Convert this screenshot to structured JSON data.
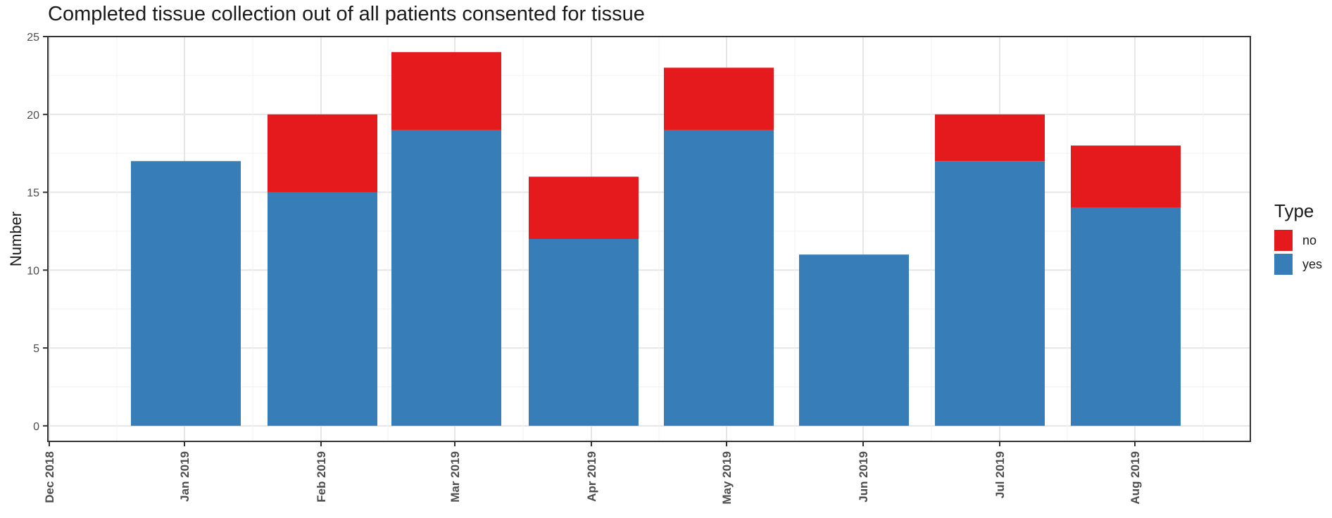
{
  "chart_data": {
    "type": "bar",
    "stacked": true,
    "title": "Completed tissue collection out of all patients consented for tissue",
    "xlabel": "",
    "ylabel": "Number",
    "ylim": [
      -1,
      25
    ],
    "y_ticks": [
      0,
      5,
      10,
      15,
      20,
      25
    ],
    "x_ticks": [
      "Dec 2018",
      "Jan 2019",
      "Feb 2019",
      "Mar 2019",
      "Apr 2019",
      "May 2019",
      "Jun 2019",
      "Jul 2019",
      "Aug 2019"
    ],
    "grid": true,
    "legend_position": "right",
    "legend_title": "Type",
    "categories": [
      "Jan 2019",
      "Feb 2019",
      "Mar 2019",
      "Apr 2019",
      "May 2019",
      "Jun 2019",
      "Jul 2019",
      "Aug 2019"
    ],
    "series": [
      {
        "name": "yes",
        "color": "#377EB8",
        "values": [
          17,
          15,
          19,
          12,
          19,
          11,
          17,
          14
        ]
      },
      {
        "name": "no",
        "color": "#E41A1C",
        "values": [
          0,
          5,
          5,
          4,
          4,
          0,
          3,
          4
        ]
      }
    ],
    "legend_order": [
      "no",
      "yes"
    ]
  }
}
